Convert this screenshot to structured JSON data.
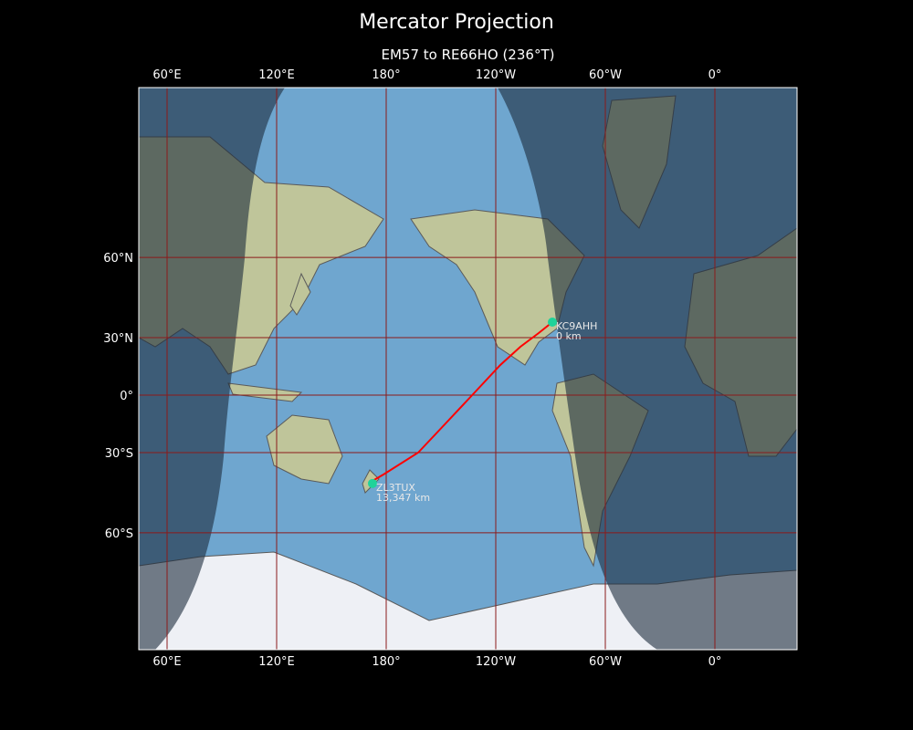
{
  "title": "Mercator Projection",
  "subtitle": "EM57 to RE66HO (236°T)",
  "map": {
    "projection": "Mercator",
    "lon_ticks": [
      {
        "lon": 60,
        "label": "60°E"
      },
      {
        "lon": 120,
        "label": "120°E"
      },
      {
        "lon": 180,
        "label": "180°"
      },
      {
        "lon": 240,
        "label": "120°W"
      },
      {
        "lon": 300,
        "label": "60°W"
      },
      {
        "lon": 360,
        "label": "0°"
      }
    ],
    "lat_ticks": [
      {
        "lat": 60,
        "label": "60°N"
      },
      {
        "lat": 30,
        "label": "30°N"
      },
      {
        "lat": 0,
        "label": "0°"
      },
      {
        "lat": -30,
        "label": "30°S"
      },
      {
        "lat": -60,
        "label": "60°S"
      }
    ],
    "gridline_color": "#8b1a1a",
    "path_color": "#ff0000",
    "marker_color": "#1fd39a",
    "night_shading": true
  },
  "stations": [
    {
      "call": "KC9AHH",
      "distance": "0 km",
      "lat": 37.1,
      "lon": -89
    },
    {
      "call": "ZL3TUX",
      "distance": "13,347 km",
      "lat": -43.5,
      "lon": 172.5
    }
  ]
}
